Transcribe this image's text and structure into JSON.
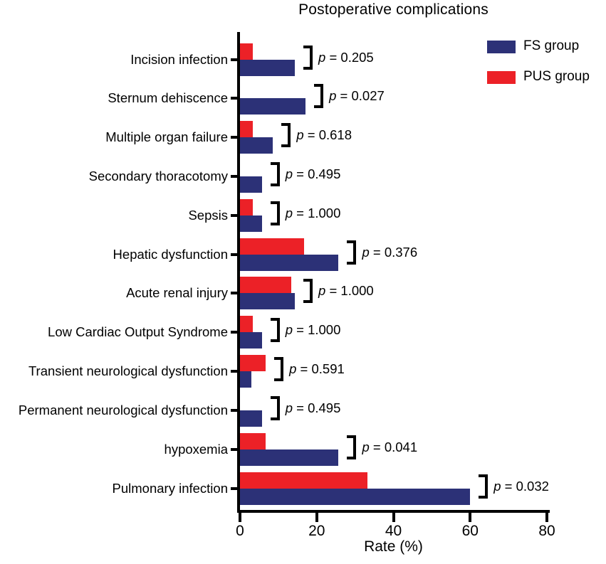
{
  "chart_data": {
    "type": "bar",
    "orientation": "horizontal",
    "title": "Postoperative complications",
    "xlabel": "Rate (%)",
    "xlim": [
      0,
      80
    ],
    "x_ticks": [
      0,
      20,
      40,
      60,
      80
    ],
    "grid": false,
    "legend_position": "top-right",
    "p_symbol": "p",
    "p_separator": " = ",
    "series": [
      {
        "name": "FS group",
        "key": "fs",
        "color": "#2C3177"
      },
      {
        "name": "PUS group",
        "key": "pus",
        "color": "#EC2127"
      }
    ],
    "categories": [
      "Incision infection",
      "Sternum dehiscence",
      "Multiple organ failure",
      "Secondary thoracotomy",
      "Sepsis",
      "Hepatic dysfunction",
      "Acute renal injury",
      "Low Cardiac Output Syndrome",
      "Transient neurological dysfunction",
      "Permanent neurological dysfunction",
      "hypoxemia",
      "Pulmonary infection"
    ],
    "rows": [
      {
        "category": "Incision infection",
        "fs": 14.3,
        "pus": 3.3,
        "p": "0.205"
      },
      {
        "category": "Sternum dehiscence",
        "fs": 17.1,
        "pus": 0,
        "p": "0.027"
      },
      {
        "category": "Multiple organ failure",
        "fs": 8.6,
        "pus": 3.3,
        "p": "0.618"
      },
      {
        "category": "Secondary thoracotomy",
        "fs": 5.7,
        "pus": 0,
        "p": "0.495"
      },
      {
        "category": "Sepsis",
        "fs": 5.7,
        "pus": 3.3,
        "p": "1.000"
      },
      {
        "category": "Hepatic dysfunction",
        "fs": 25.7,
        "pus": 16.7,
        "p": "0.376"
      },
      {
        "category": "Acute renal injury",
        "fs": 14.3,
        "pus": 13.3,
        "p": "1.000"
      },
      {
        "category": "Low Cardiac Output Syndrome",
        "fs": 5.7,
        "pus": 3.3,
        "p": "1.000"
      },
      {
        "category": "Transient neurological dysfunction",
        "fs": 2.9,
        "pus": 6.7,
        "p": "0.591"
      },
      {
        "category": "Permanent neurological dysfunction",
        "fs": 5.7,
        "pus": 0,
        "p": "0.495"
      },
      {
        "category": "hypoxemia",
        "fs": 25.7,
        "pus": 6.7,
        "p": "0.041"
      },
      {
        "category": "Pulmonary infection",
        "fs": 60.0,
        "pus": 33.3,
        "p": "0.032"
      }
    ]
  }
}
